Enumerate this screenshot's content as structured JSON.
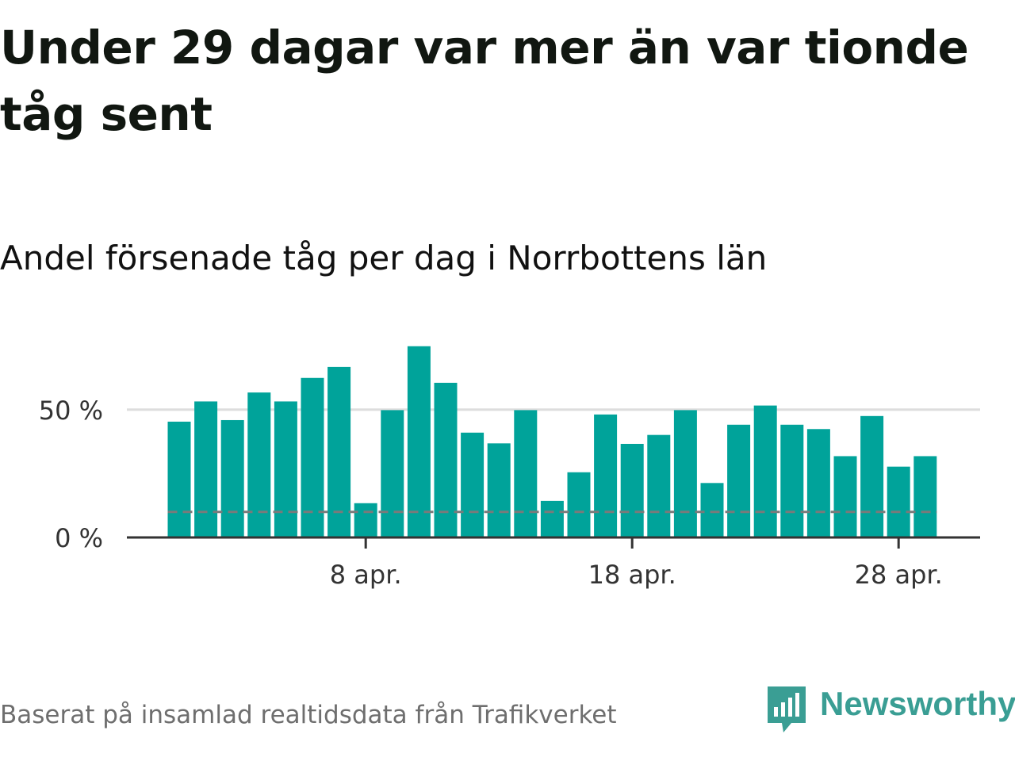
{
  "title": "Under 29 dagar var mer än var tionde tåg sent",
  "subtitle": "Andel försenade tåg per dag i Norrbottens län",
  "source": "Baserat på insamlad realtidsdata från Trafikverket",
  "brand": {
    "name": "Newsworthy",
    "color": "#3a9e94",
    "icon": "newsworthy-logo-icon"
  },
  "colors": {
    "bar": "#00a39a",
    "reference_line": "#7a7a7a",
    "grid": "#dddddd",
    "axis": "#333333"
  },
  "chart_data": {
    "type": "bar",
    "x": [
      "2020-04-01",
      "2020-04-02",
      "2020-04-03",
      "2020-04-04",
      "2020-04-05",
      "2020-04-06",
      "2020-04-07",
      "2020-04-08",
      "2020-04-09",
      "2020-04-10",
      "2020-04-11",
      "2020-04-12",
      "2020-04-13",
      "2020-04-14",
      "2020-04-15",
      "2020-04-16",
      "2020-04-17",
      "2020-04-18",
      "2020-04-19",
      "2020-04-20",
      "2020-04-21",
      "2020-04-22",
      "2020-04-23",
      "2020-04-24",
      "2020-04-25",
      "2020-04-26",
      "2020-04-27",
      "2020-04-28",
      "2020-04-29"
    ],
    "values": [
      45.3,
      53.2,
      45.9,
      56.7,
      53.2,
      62.4,
      66.7,
      13.4,
      49.8,
      74.8,
      60.5,
      41.0,
      36.8,
      49.8,
      14.3,
      25.5,
      48.1,
      36.6,
      40.1,
      49.8,
      21.3,
      44.1,
      51.6,
      44.1,
      42.4,
      31.8,
      47.5,
      27.7,
      31.8
    ],
    "value_unit": "%",
    "reference_line": {
      "value": 10,
      "style": "dashed"
    },
    "ylim": [
      0,
      80
    ],
    "yticks": [
      {
        "value": 0,
        "label": "0 %"
      },
      {
        "value": 50,
        "label": "50 %"
      }
    ],
    "xticks": [
      {
        "x": "2020-04-08",
        "label": "8 apr."
      },
      {
        "x": "2020-04-18",
        "label": "18 apr."
      },
      {
        "x": "2020-04-28",
        "label": "28 apr."
      }
    ],
    "grid": true,
    "legend": "none"
  }
}
